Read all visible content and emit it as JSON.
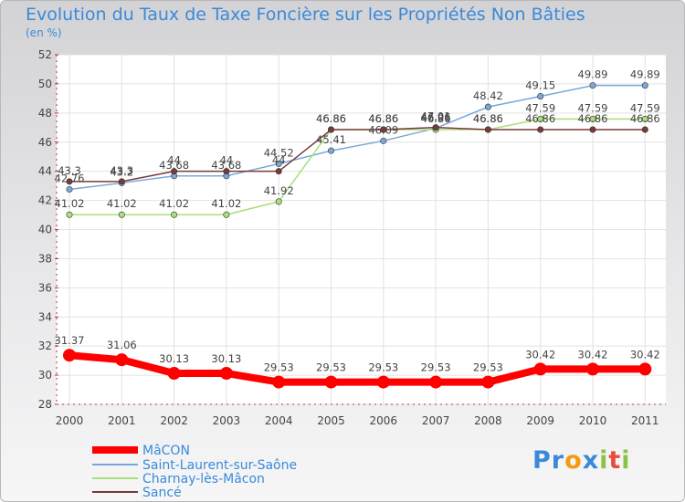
{
  "chart_data": {
    "type": "line",
    "title": "Evolution du Taux de Taxe Foncière sur les Propriétés Non Bâties",
    "subtitle": "(en %)",
    "x": [
      "2000",
      "2001",
      "2002",
      "2003",
      "2004",
      "2005",
      "2006",
      "2007",
      "2008",
      "2009",
      "2010",
      "2011"
    ],
    "ylim": [
      28,
      52
    ],
    "yticks": [
      28,
      30,
      32,
      34,
      36,
      38,
      40,
      42,
      44,
      46,
      48,
      50,
      52
    ],
    "grid": true,
    "legend_position": "bottom-left",
    "series": [
      {
        "name": "MâCON",
        "color": "#ff0000",
        "values": [
          31.37,
          31.06,
          30.13,
          30.13,
          29.53,
          29.53,
          29.53,
          29.53,
          29.53,
          30.42,
          30.42,
          30.42
        ]
      },
      {
        "name": "Saint-Laurent-sur-Saône",
        "color": "#7aa8d8",
        "values": [
          42.76,
          43.2,
          43.68,
          43.68,
          44.52,
          45.41,
          46.09,
          46.96,
          48.42,
          49.15,
          49.89,
          49.89
        ]
      },
      {
        "name": "Charnay-lès-Mâcon",
        "color": "#a8e07a",
        "values": [
          41.02,
          41.02,
          41.02,
          41.02,
          41.92,
          46.86,
          46.86,
          46.86,
          46.86,
          47.59,
          47.59,
          47.59
        ]
      },
      {
        "name": "Sancé",
        "color": "#7a3a3a",
        "values": [
          43.3,
          43.3,
          44,
          44,
          44,
          46.86,
          46.86,
          47.01,
          46.86,
          46.86,
          46.86,
          46.86
        ]
      }
    ]
  },
  "logo": {
    "letters": [
      "P",
      "r",
      "o",
      "x",
      "i",
      "t",
      "i"
    ],
    "colors": [
      "#3a8ad8",
      "#3a8ad8",
      "#f39c12",
      "#3a8ad8",
      "#8bc34a",
      "#e74c3c",
      "#8bc34a"
    ]
  }
}
